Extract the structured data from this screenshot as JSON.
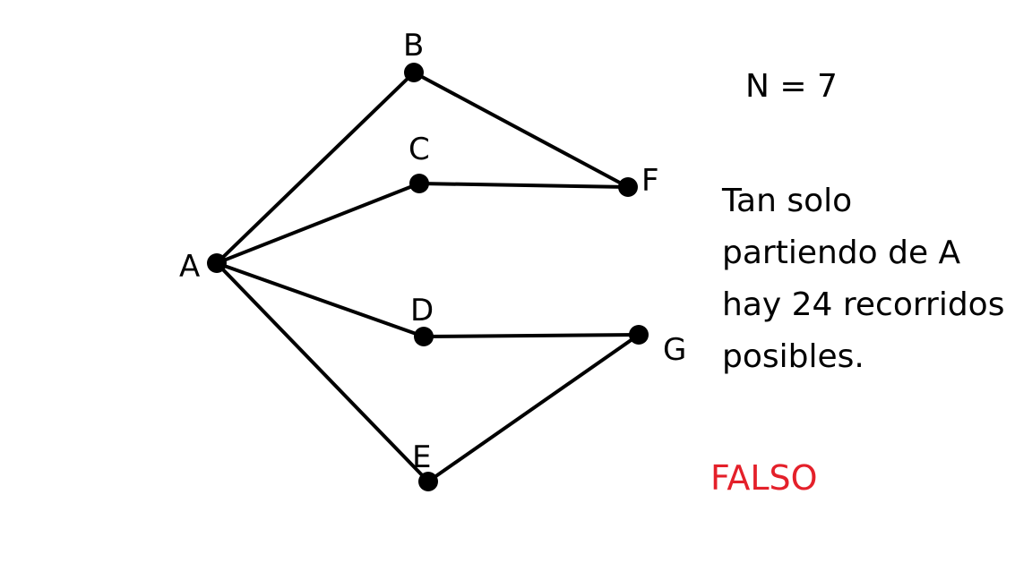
{
  "graph": {
    "nodes": [
      {
        "id": "A",
        "label": "A"
      },
      {
        "id": "B",
        "label": "B"
      },
      {
        "id": "C",
        "label": "C"
      },
      {
        "id": "D",
        "label": "D"
      },
      {
        "id": "E",
        "label": "E"
      },
      {
        "id": "F",
        "label": "F"
      },
      {
        "id": "G",
        "label": "G"
      }
    ],
    "edges": [
      [
        "A",
        "B"
      ],
      [
        "A",
        "C"
      ],
      [
        "A",
        "D"
      ],
      [
        "A",
        "E"
      ],
      [
        "B",
        "F"
      ],
      [
        "C",
        "F"
      ],
      [
        "D",
        "G"
      ],
      [
        "E",
        "G"
      ]
    ]
  },
  "n_label": "N = 7",
  "statement": {
    "lines": [
      "Tan solo",
      "partiendo de A",
      "hay 24 recorridos",
      "posibles."
    ]
  },
  "verdict": {
    "text": "FALSO",
    "color": "#e4202a"
  }
}
